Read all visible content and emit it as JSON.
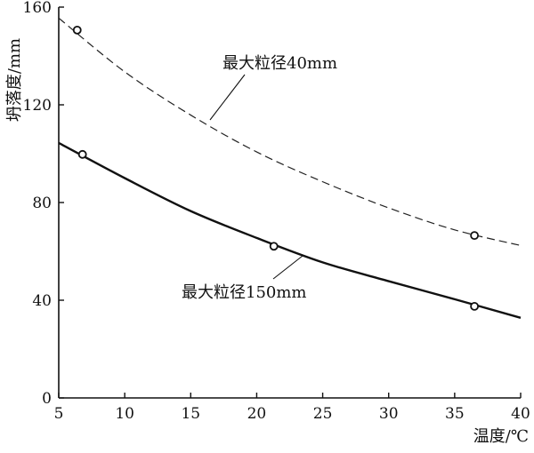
{
  "chart_data": {
    "type": "line",
    "title": "",
    "xlabel": "温度/℃",
    "ylabel": "坍落度/mm",
    "xlim": [
      5,
      40
    ],
    "ylim": [
      0,
      160
    ],
    "xticks": [
      5,
      10,
      15,
      20,
      25,
      30,
      35,
      40
    ],
    "yticks": [
      0,
      40,
      80,
      120,
      160
    ],
    "x_tick_labels": [
      "5",
      "10",
      "15",
      "20",
      "25",
      "30",
      "35",
      "40"
    ],
    "y_tick_labels": [
      "0",
      "40",
      "80",
      "120",
      "160"
    ],
    "grid": false,
    "legend": "none",
    "series": [
      {
        "name": "最大粒径40mm",
        "line_style": "dashed",
        "color": "#222222",
        "curve": [
          [
            5,
            155.5
          ],
          [
            10,
            133.5
          ],
          [
            15,
            115.8
          ],
          [
            20,
            100.7
          ],
          [
            25,
            88.5
          ],
          [
            30,
            77.8
          ],
          [
            35,
            68.8
          ],
          [
            40,
            62.4
          ]
        ],
        "markers": [
          [
            6.4,
            150.6
          ],
          [
            36.5,
            66.5
          ]
        ]
      },
      {
        "name": "最大粒径150mm",
        "line_style": "solid",
        "color": "#111111",
        "curve": [
          [
            5,
            104.4
          ],
          [
            10,
            90.0
          ],
          [
            15,
            76.5
          ],
          [
            20,
            65.5
          ],
          [
            25,
            55.5
          ],
          [
            30,
            47.8
          ],
          [
            35,
            40.4
          ],
          [
            40,
            32.8
          ]
        ],
        "markers": [
          [
            6.8,
            99.7
          ],
          [
            21.3,
            62.1
          ],
          [
            36.5,
            37.5
          ]
        ]
      }
    ],
    "annotations": [
      {
        "text": "最大粒径40mm",
        "series": 0
      },
      {
        "text": "最大粒径150mm",
        "series": 1
      }
    ]
  }
}
